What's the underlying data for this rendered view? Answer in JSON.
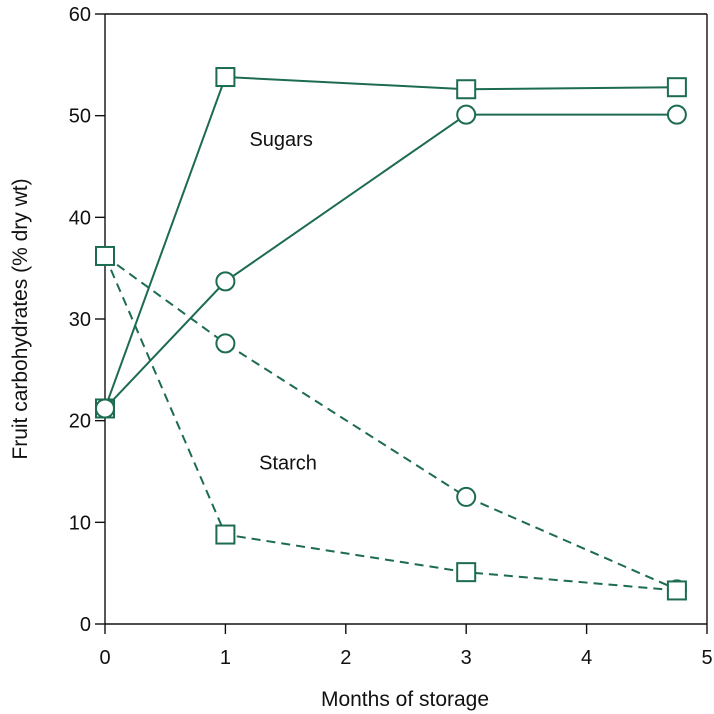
{
  "chart_data": {
    "type": "line",
    "title": "",
    "xlabel": "Months of storage",
    "ylabel": "Fruit carbohydrates (% dry wt)",
    "xlim": [
      0,
      5
    ],
    "ylim": [
      0,
      60
    ],
    "xticks": [
      "0",
      "1",
      "2",
      "3",
      "4",
      "5"
    ],
    "yticks": [
      "0",
      "10",
      "20",
      "30",
      "40",
      "50",
      "60"
    ],
    "grid": false,
    "legend": "none",
    "annotations": [
      {
        "text": "Sugars",
        "x": 1.2,
        "y": 47
      },
      {
        "text": "Starch",
        "x": 1.28,
        "y": 15.2
      }
    ],
    "series": [
      {
        "group": "Sugars",
        "marker": "square",
        "linestyle": "solid",
        "x": [
          0,
          1,
          3,
          4.75
        ],
        "y": [
          21.2,
          53.8,
          52.6,
          52.8
        ]
      },
      {
        "group": "Sugars",
        "marker": "circle",
        "linestyle": "solid",
        "x": [
          0,
          1,
          3,
          4.75
        ],
        "y": [
          21.2,
          33.7,
          50.1,
          50.1
        ]
      },
      {
        "group": "Starch",
        "marker": "circle",
        "linestyle": "dashed",
        "x": [
          0,
          1,
          3,
          4.75
        ],
        "y": [
          36.2,
          27.6,
          12.5,
          3.4
        ]
      },
      {
        "group": "Starch",
        "marker": "square",
        "linestyle": "dashed",
        "x": [
          0,
          1,
          3,
          4.75
        ],
        "y": [
          36.2,
          8.8,
          5.1,
          3.3
        ]
      }
    ],
    "colors": {
      "series": "#1d6b50",
      "axis": "#111111"
    }
  }
}
